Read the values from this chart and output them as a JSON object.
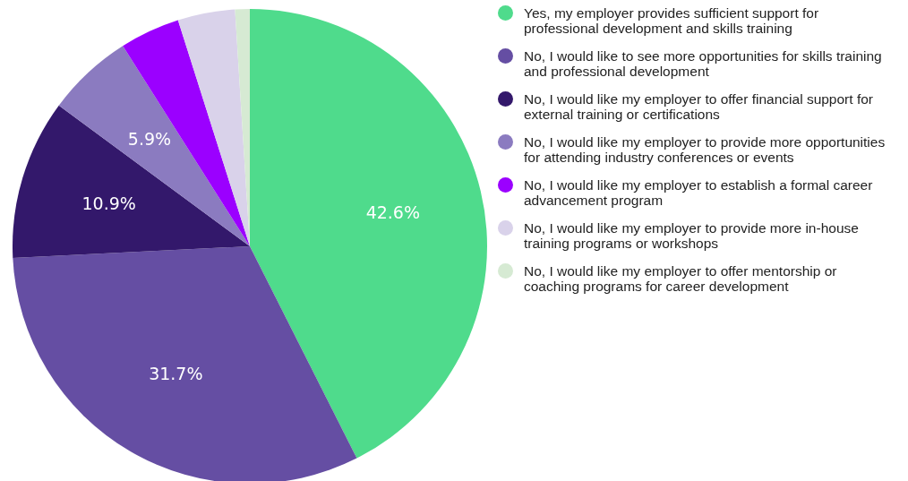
{
  "chart_data": {
    "type": "pie",
    "categories": [
      "Yes, my employer provides sufficient support for professional development and skills training",
      "No, I would like to see more opportunities for skills training and professional development",
      "No, I would like my employer to offer financial support for external training or certifications",
      "No, I would like my employer to provide more opportunities for attending industry conferences or events",
      "No, I would like my employer to establish a formal career advancement program",
      "No, I would like my employer to provide more in-house training programs or workshops",
      "No, I would like my employer to offer mentorship or coaching programs for career development"
    ],
    "values": [
      42.6,
      31.7,
      10.9,
      5.9,
      4.1,
      3.9,
      1.0
    ],
    "colors": [
      "#4fdb8c",
      "#654ea3",
      "#33186b",
      "#8b7bc0",
      "#9b00ff",
      "#d9d2ea",
      "#d6ead3"
    ],
    "value_labels": [
      "42.6%",
      "31.7%",
      "10.9%",
      "5.9%",
      null,
      null,
      null
    ],
    "legend": "right"
  }
}
